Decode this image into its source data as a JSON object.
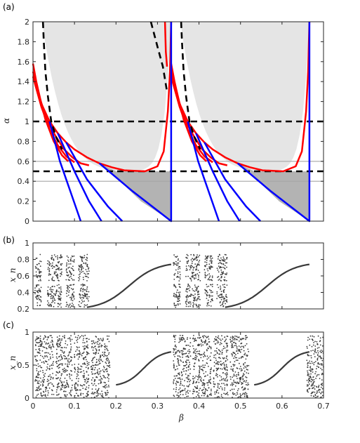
{
  "chart_data": [
    {
      "type": "line",
      "panel_label": "(a)",
      "xlim": [
        0,
        0.7
      ],
      "ylim": [
        0,
        2
      ],
      "ylabel": "α",
      "y_ticks": [
        "0",
        "0.2",
        "0.4",
        "0.6",
        "0.8",
        "1",
        "1.2",
        "1.4",
        "1.6",
        "1.8",
        "2"
      ],
      "grid": false,
      "fill_regions": [
        {
          "name": "light region",
          "color": "#e5e5e5"
        },
        {
          "name": "dark region",
          "color": "#b3b3b3"
        }
      ],
      "hlines": [
        {
          "y": 0.4,
          "style": "solid",
          "color": "#a6a6a6"
        },
        {
          "y": 0.6,
          "style": "solid",
          "color": "#a6a6a6"
        },
        {
          "y": 0.5,
          "style": "dashed",
          "color": "#000000"
        },
        {
          "y": 1.0,
          "style": "dashed",
          "color": "#000000"
        }
      ],
      "series": [
        {
          "color": "#ff0000",
          "style": "solid",
          "points": [
            [
              0.0,
              1.58
            ],
            [
              0.008,
              1.4
            ],
            [
              0.02,
              1.18
            ],
            [
              0.04,
              1.0
            ],
            [
              0.06,
              0.88
            ],
            [
              0.08,
              0.79
            ],
            [
              0.1,
              0.72
            ],
            [
              0.13,
              0.64
            ],
            [
              0.16,
              0.58
            ],
            [
              0.19,
              0.54
            ],
            [
              0.22,
              0.51
            ],
            [
              0.27,
              0.5
            ],
            [
              0.3,
              0.55
            ],
            [
              0.315,
              0.7
            ],
            [
              0.325,
              1.1
            ],
            [
              0.33,
              1.5
            ],
            [
              0.333,
              2.0
            ]
          ]
        },
        {
          "color": "#ff0000",
          "style": "solid",
          "points": [
            [
              0.0,
              1.5
            ],
            [
              0.015,
              1.25
            ],
            [
              0.035,
              1.0
            ],
            [
              0.055,
              0.85
            ],
            [
              0.075,
              0.72
            ],
            [
              0.095,
              0.64
            ],
            [
              0.115,
              0.58
            ],
            [
              0.135,
              0.56
            ]
          ]
        },
        {
          "color": "#ff0000",
          "style": "solid",
          "points": [
            [
              0.0,
              1.45
            ],
            [
              0.02,
              1.15
            ],
            [
              0.04,
              0.92
            ],
            [
              0.06,
              0.76
            ],
            [
              0.08,
              0.65
            ],
            [
              0.1,
              0.59
            ]
          ]
        },
        {
          "color": "#ff0000",
          "style": "solid",
          "points": [
            [
              0.01,
              1.35
            ],
            [
              0.03,
              1.02
            ],
            [
              0.05,
              0.8
            ],
            [
              0.07,
              0.66
            ],
            [
              0.085,
              0.6
            ]
          ]
        },
        {
          "color": "#ff0000",
          "style": "solid",
          "points": [
            [
              0.333,
              1.58
            ],
            [
              0.341,
              1.4
            ],
            [
              0.353,
              1.18
            ],
            [
              0.373,
              1.0
            ],
            [
              0.393,
              0.88
            ],
            [
              0.413,
              0.79
            ],
            [
              0.433,
              0.72
            ],
            [
              0.463,
              0.64
            ],
            [
              0.493,
              0.58
            ],
            [
              0.523,
              0.54
            ],
            [
              0.553,
              0.51
            ],
            [
              0.603,
              0.5
            ],
            [
              0.633,
              0.55
            ],
            [
              0.648,
              0.7
            ],
            [
              0.658,
              1.1
            ],
            [
              0.663,
              1.5
            ],
            [
              0.666,
              2.0
            ]
          ]
        },
        {
          "color": "#ff0000",
          "style": "solid",
          "points": [
            [
              0.333,
              1.5
            ],
            [
              0.348,
              1.25
            ],
            [
              0.368,
              1.0
            ],
            [
              0.388,
              0.85
            ],
            [
              0.408,
              0.72
            ],
            [
              0.428,
              0.64
            ],
            [
              0.448,
              0.58
            ],
            [
              0.468,
              0.56
            ]
          ]
        },
        {
          "color": "#ff0000",
          "style": "solid",
          "points": [
            [
              0.333,
              1.45
            ],
            [
              0.353,
              1.15
            ],
            [
              0.373,
              0.92
            ],
            [
              0.393,
              0.76
            ],
            [
              0.413,
              0.65
            ],
            [
              0.433,
              0.59
            ]
          ]
        },
        {
          "color": "#ff0000",
          "style": "solid",
          "points": [
            [
              0.343,
              1.35
            ],
            [
              0.363,
              1.02
            ],
            [
              0.383,
              0.8
            ],
            [
              0.403,
              0.66
            ],
            [
              0.418,
              0.6
            ]
          ]
        },
        {
          "color": "#ff0000",
          "style": "solid",
          "points": [
            [
              0.318,
              2.0
            ],
            [
              0.32,
              1.7
            ],
            [
              0.323,
              1.55
            ]
          ]
        },
        {
          "color": "#0000ff",
          "style": "solid",
          "points": [
            [
              0.04,
              1.0
            ],
            [
              0.065,
              0.6
            ],
            [
              0.09,
              0.3
            ],
            [
              0.115,
              0.0
            ]
          ]
        },
        {
          "color": "#0000ff",
          "style": "solid",
          "points": [
            [
              0.06,
              0.88
            ],
            [
              0.1,
              0.5
            ],
            [
              0.135,
              0.2
            ],
            [
              0.165,
              0.0
            ]
          ]
        },
        {
          "color": "#0000ff",
          "style": "solid",
          "points": [
            [
              0.08,
              0.79
            ],
            [
              0.13,
              0.42
            ],
            [
              0.18,
              0.15
            ],
            [
              0.215,
              0.0
            ]
          ]
        },
        {
          "color": "#0000ff",
          "style": "solid",
          "points": [
            [
              0.16,
              0.58
            ],
            [
              0.24,
              0.3
            ],
            [
              0.333,
              0.0
            ],
            [
              0.333,
              2.0
            ]
          ]
        },
        {
          "color": "#0000ff",
          "style": "solid",
          "points": [
            [
              0.373,
              1.0
            ],
            [
              0.398,
              0.6
            ],
            [
              0.423,
              0.3
            ],
            [
              0.448,
              0.0
            ]
          ]
        },
        {
          "color": "#0000ff",
          "style": "solid",
          "points": [
            [
              0.393,
              0.88
            ],
            [
              0.433,
              0.5
            ],
            [
              0.468,
              0.2
            ],
            [
              0.498,
              0.0
            ]
          ]
        },
        {
          "color": "#0000ff",
          "style": "solid",
          "points": [
            [
              0.413,
              0.79
            ],
            [
              0.463,
              0.42
            ],
            [
              0.513,
              0.15
            ],
            [
              0.548,
              0.0
            ]
          ]
        },
        {
          "color": "#0000ff",
          "style": "solid",
          "points": [
            [
              0.493,
              0.58
            ],
            [
              0.573,
              0.3
            ],
            [
              0.666,
              0.0
            ],
            [
              0.666,
              2.0
            ]
          ]
        },
        {
          "color": "#000000",
          "style": "dashed",
          "points": [
            [
              0.024,
              2.0
            ],
            [
              0.026,
              1.8
            ],
            [
              0.03,
              1.5
            ],
            [
              0.036,
              1.25
            ],
            [
              0.044,
              1.0
            ],
            [
              0.055,
              0.85
            ],
            [
              0.07,
              0.72
            ]
          ]
        },
        {
          "color": "#000000",
          "style": "dashed",
          "points": [
            [
              0.284,
              2.0
            ],
            [
              0.3,
              1.75
            ],
            [
              0.313,
              1.55
            ],
            [
              0.323,
              1.3
            ]
          ]
        },
        {
          "color": "#000000",
          "style": "dashed",
          "points": [
            [
              0.357,
              2.0
            ],
            [
              0.359,
              1.8
            ],
            [
              0.363,
              1.5
            ],
            [
              0.369,
              1.25
            ],
            [
              0.377,
              1.0
            ],
            [
              0.388,
              0.85
            ],
            [
              0.403,
              0.72
            ]
          ]
        }
      ]
    },
    {
      "type": "scatter",
      "panel_label": "(b)",
      "xlim": [
        0,
        0.7
      ],
      "ylim": [
        0.2,
        1.0
      ],
      "ylabel": "x_n",
      "y_ticks": [
        "0.2",
        "0.4",
        "0.6",
        "0.8",
        "1"
      ],
      "color": "#3a3a3a",
      "chaotic_bands": [
        [
          0.005,
          0.02,
          0.22,
          0.88
        ],
        [
          0.035,
          0.07,
          0.22,
          0.86
        ],
        [
          0.08,
          0.1,
          0.22,
          0.84
        ],
        [
          0.11,
          0.135,
          0.22,
          0.86
        ],
        [
          0.338,
          0.355,
          0.22,
          0.88
        ],
        [
          0.368,
          0.403,
          0.22,
          0.86
        ],
        [
          0.413,
          0.433,
          0.22,
          0.84
        ],
        [
          0.443,
          0.468,
          0.22,
          0.86
        ]
      ],
      "periodic_curves": [
        [
          0.13,
          0.333,
          0.22,
          0.74
        ],
        [
          0.463,
          0.666,
          0.22,
          0.74
        ]
      ]
    },
    {
      "type": "scatter",
      "panel_label": "(c)",
      "xlim": [
        0,
        0.7
      ],
      "ylim": [
        0,
        1.0
      ],
      "ylabel": "x_n",
      "y_ticks": [
        "0",
        "0.5",
        "1"
      ],
      "x_ticks": [
        "0",
        "0.1",
        "0.2",
        "0.3",
        "0.4",
        "0.5",
        "0.6",
        "0.7"
      ],
      "xlabel": "β",
      "color": "#3a3a3a",
      "chaotic_bands": [
        [
          0.005,
          0.05,
          0.0,
          0.95
        ],
        [
          0.055,
          0.095,
          0.0,
          0.95
        ],
        [
          0.1,
          0.135,
          0.0,
          0.95
        ],
        [
          0.14,
          0.185,
          0.0,
          0.95
        ],
        [
          0.338,
          0.38,
          0.0,
          0.95
        ],
        [
          0.385,
          0.43,
          0.0,
          0.95
        ],
        [
          0.435,
          0.47,
          0.0,
          0.95
        ],
        [
          0.475,
          0.52,
          0.0,
          0.95
        ],
        [
          0.66,
          0.7,
          0.0,
          0.95
        ]
      ],
      "periodic_curves": [
        [
          0.2,
          0.333,
          0.2,
          0.7
        ],
        [
          0.533,
          0.666,
          0.2,
          0.7
        ]
      ]
    }
  ]
}
